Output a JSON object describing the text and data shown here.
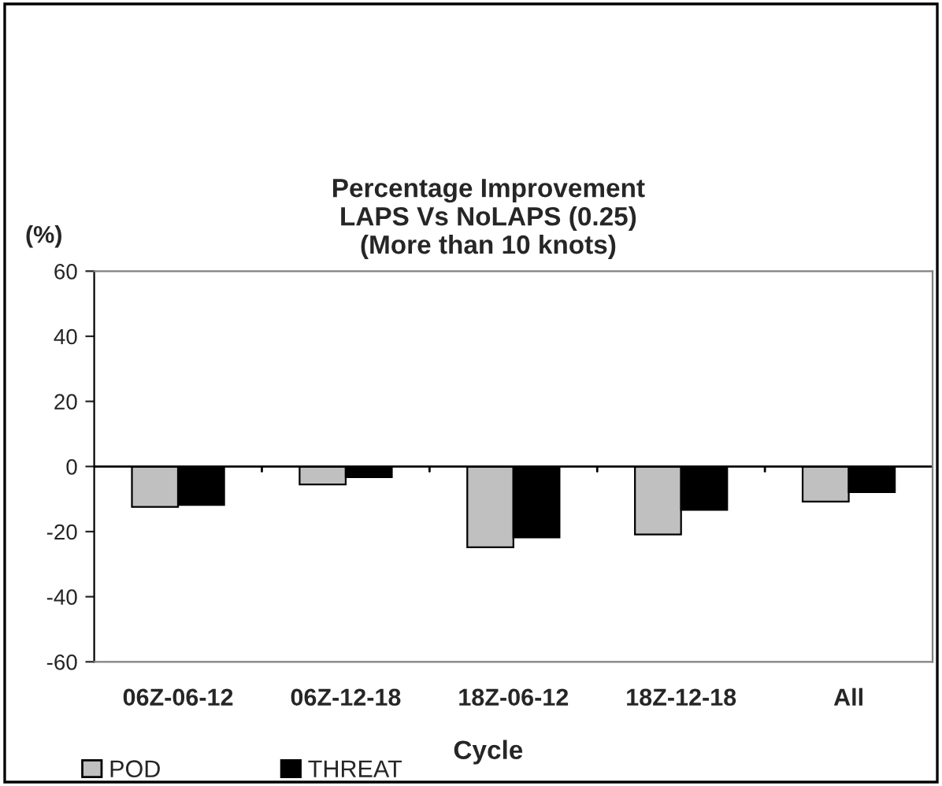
{
  "chart_data": {
    "type": "bar",
    "title": "Percentage Improvement\nLAPS Vs NoLAPS (0.25)\n(More than 10 knots)",
    "ylabel": "(%)",
    "xlabel": "Cycle",
    "categories": [
      "06Z-06-12",
      "06Z-12-18",
      "18Z-06-12",
      "18Z-12-18",
      "All"
    ],
    "series": [
      {
        "name": "POD",
        "color": "#c0c0c0",
        "values": [
          -12.4,
          -5.5,
          -24.8,
          -20.9,
          -10.8
        ]
      },
      {
        "name": "THREAT",
        "color": "#000000",
        "values": [
          -11.8,
          -3.3,
          -21.8,
          -13.3,
          -7.9
        ]
      }
    ],
    "ylim": [
      -60,
      60
    ],
    "yticks": [
      -60,
      -40,
      -20,
      0,
      20,
      40,
      60
    ],
    "legend": "bottom left"
  }
}
